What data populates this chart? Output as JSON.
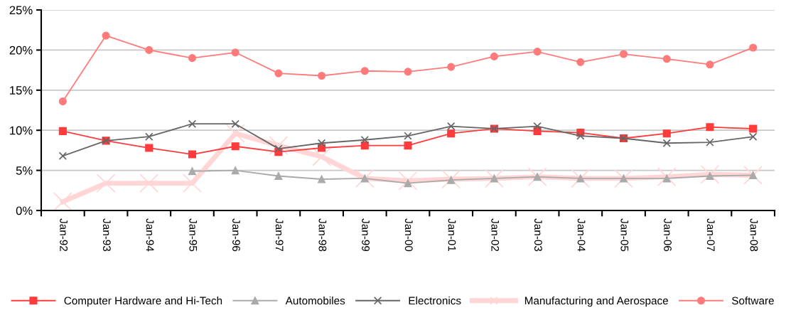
{
  "chart_data": {
    "type": "line",
    "categories": [
      "Jan-92",
      "Jan-93",
      "Jan-94",
      "Jan-95",
      "Jan-96",
      "Jan-97",
      "Jan-98",
      "Jan-99",
      "Jan-00",
      "Jan-01",
      "Jan-02",
      "Jan-03",
      "Jan-04",
      "Jan-05",
      "Jan-06",
      "Jan-07",
      "Jan-08"
    ],
    "series": [
      {
        "name": "Computer Hardware and Hi-Tech",
        "color": "#ff3b3b",
        "marker": "square",
        "values": [
          9.9,
          8.7,
          7.8,
          7.0,
          8.0,
          7.3,
          7.8,
          8.1,
          8.1,
          9.6,
          10.2,
          9.9,
          9.7,
          9.0,
          9.6,
          10.4,
          10.2
        ]
      },
      {
        "name": "Automobiles",
        "color": "#aaaaaa",
        "marker": "triangle",
        "values": [
          null,
          null,
          null,
          4.9,
          5.0,
          4.3,
          3.9,
          4.0,
          3.4,
          3.8,
          4.0,
          4.2,
          4.0,
          4.0,
          4.0,
          4.3,
          4.4
        ]
      },
      {
        "name": "Electronics",
        "color": "#666666",
        "marker": "cross",
        "values": [
          6.8,
          8.7,
          9.2,
          10.8,
          10.8,
          7.7,
          8.4,
          8.8,
          9.3,
          10.5,
          10.2,
          10.5,
          9.3,
          9.0,
          8.4,
          8.5,
          9.2
        ]
      },
      {
        "name": "Manufacturing and Aerospace",
        "color": "#ffd5d5",
        "marker": "cross",
        "values": [
          1.1,
          3.4,
          3.4,
          3.4,
          9.6,
          8.1,
          6.7,
          4.0,
          3.7,
          3.9,
          4.0,
          4.2,
          4.0,
          4.0,
          4.2,
          4.5,
          4.4
        ]
      },
      {
        "name": "Software",
        "color": "#ff7b7b",
        "marker": "circle",
        "values": [
          13.6,
          21.8,
          20.0,
          19.0,
          19.7,
          17.1,
          16.8,
          17.4,
          17.3,
          17.9,
          19.2,
          19.8,
          18.5,
          19.5,
          18.9,
          18.2,
          20.3
        ]
      }
    ],
    "ylim": [
      0,
      25
    ],
    "yticks": [
      {
        "value": 0,
        "label": "0%"
      },
      {
        "value": 5,
        "label": "5%"
      },
      {
        "value": 10,
        "label": "10%"
      },
      {
        "value": 15,
        "label": "15%"
      },
      {
        "value": 20,
        "label": "20%"
      },
      {
        "value": 25,
        "label": "25%"
      }
    ],
    "grid": "y",
    "legend": "bottom",
    "line_style": "solid"
  }
}
